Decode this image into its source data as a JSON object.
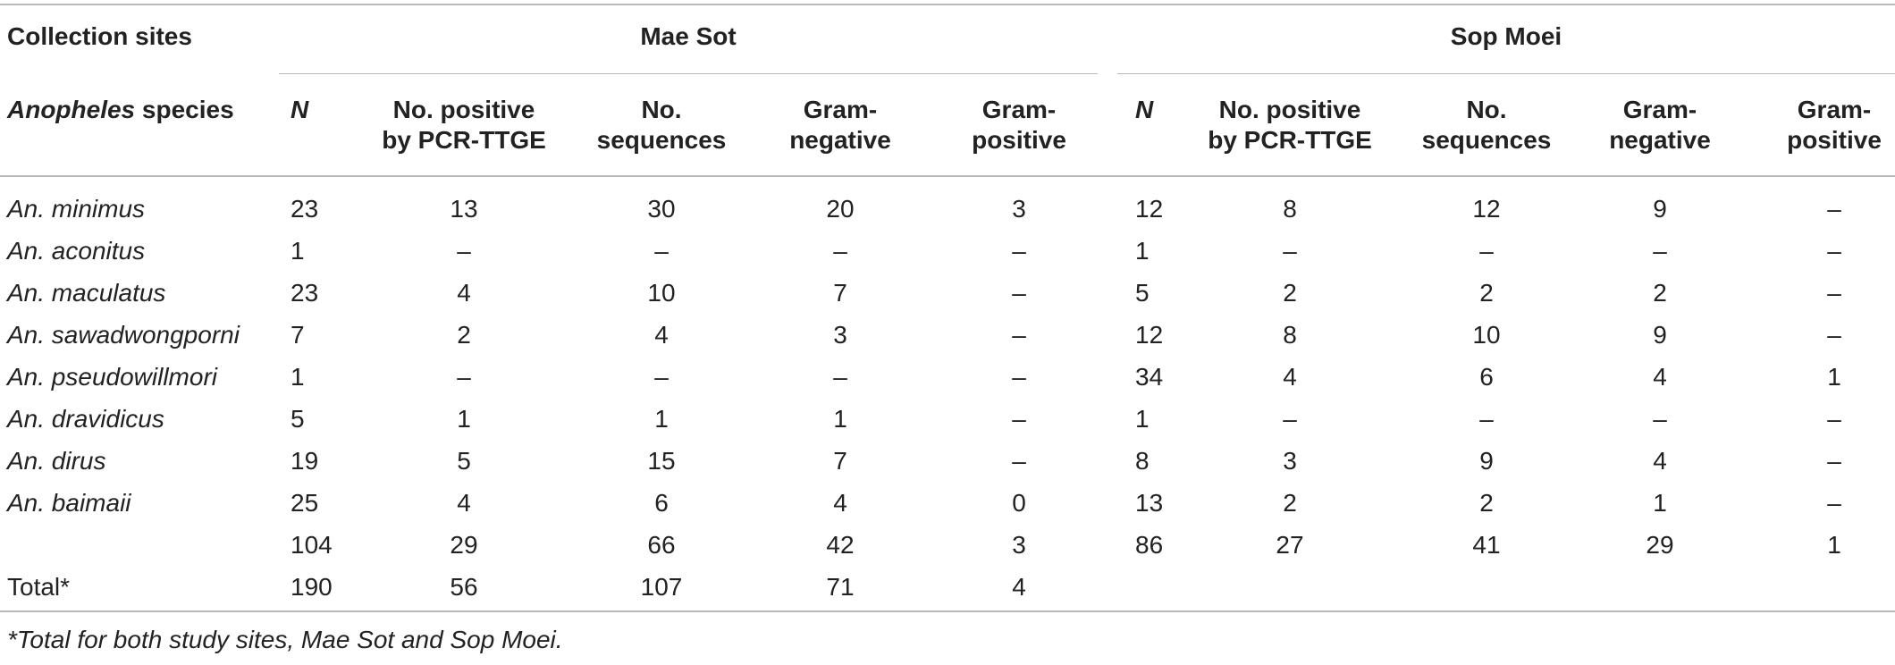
{
  "header": {
    "collection_sites_label": "Collection sites",
    "site1": "Mae Sot",
    "site2": "Sop Moei",
    "species_label_italic": "Anopheles",
    "species_label_rest": " species",
    "columns": [
      [
        "N"
      ],
      [
        "No. positive",
        "by PCR-TTGE"
      ],
      [
        "No.",
        "sequences"
      ],
      [
        "Gram-",
        "negative"
      ],
      [
        "Gram-",
        "positive"
      ]
    ]
  },
  "rows": [
    {
      "species": "An. minimus",
      "mae_sot": [
        "23",
        "13",
        "30",
        "20",
        "3"
      ],
      "sop_moei": [
        "12",
        "8",
        "12",
        "9",
        "–"
      ]
    },
    {
      "species": "An. aconitus",
      "mae_sot": [
        "1",
        "–",
        "–",
        "–",
        "–"
      ],
      "sop_moei": [
        "1",
        "–",
        "–",
        "–",
        "–"
      ]
    },
    {
      "species": "An. maculatus",
      "mae_sot": [
        "23",
        "4",
        "10",
        "7",
        "–"
      ],
      "sop_moei": [
        "5",
        "2",
        "2",
        "2",
        "–"
      ]
    },
    {
      "species": "An. sawadwongporni",
      "mae_sot": [
        "7",
        "2",
        "4",
        "3",
        "–"
      ],
      "sop_moei": [
        "12",
        "8",
        "10",
        "9",
        "–"
      ]
    },
    {
      "species": "An. pseudowillmori",
      "mae_sot": [
        "1",
        "–",
        "–",
        "–",
        "–"
      ],
      "sop_moei": [
        "34",
        "4",
        "6",
        "4",
        "1"
      ]
    },
    {
      "species": "An. dravidicus",
      "mae_sot": [
        "5",
        "1",
        "1",
        "1",
        "–"
      ],
      "sop_moei": [
        "1",
        "–",
        "–",
        "–",
        "–"
      ]
    },
    {
      "species": "An. dirus",
      "mae_sot": [
        "19",
        "5",
        "15",
        "7",
        "–"
      ],
      "sop_moei": [
        "8",
        "3",
        "9",
        "4",
        "–"
      ]
    },
    {
      "species": "An. baimaii",
      "mae_sot": [
        "25",
        "4",
        "6",
        "4",
        "0"
      ],
      "sop_moei": [
        "13",
        "2",
        "2",
        "1",
        "–"
      ]
    },
    {
      "species": "",
      "mae_sot": [
        "104",
        "29",
        "66",
        "42",
        "3"
      ],
      "sop_moei": [
        "86",
        "27",
        "41",
        "29",
        "1"
      ]
    },
    {
      "species": "Total*",
      "mae_sot": [
        "190",
        "56",
        "107",
        "71",
        "4"
      ],
      "sop_moei": [
        "",
        "",
        "",
        "",
        ""
      ]
    }
  ],
  "footnote": "*Total for both study sites, Mae Sot and Sop Moei."
}
